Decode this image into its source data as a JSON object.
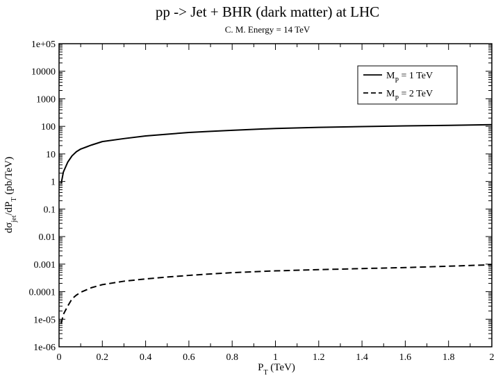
{
  "chart_data": {
    "type": "line",
    "title": "pp -> Jet + BHR (dark matter) at LHC",
    "subtitle": "C. M. Energy = 14 TeV",
    "xlabel": {
      "main": "P",
      "sub": "T",
      "rest": " (TeV)"
    },
    "ylabel": {
      "d": "d",
      "sigma": "σ",
      "jet": "jet",
      "mid": "/dP",
      "T": "T",
      "rest": " (pb/TeV)"
    },
    "xlim": [
      0,
      2
    ],
    "ylim": [
      1e-06,
      100000
    ],
    "yscale": "log",
    "x_ticks": [
      0,
      0.2,
      0.4,
      0.6,
      0.8,
      1,
      1.2,
      1.4,
      1.6,
      1.8,
      2
    ],
    "x_tick_labels": [
      "0",
      "0.2",
      "0.4",
      "0.6",
      "0.8",
      "1",
      "1.2",
      "1.4",
      "1.6",
      "1.8",
      "2"
    ],
    "y_ticks": [
      1e-06,
      1e-05,
      0.0001,
      0.001,
      0.01,
      0.1,
      1,
      10,
      100,
      1000,
      10000,
      100000
    ],
    "y_tick_labels": [
      "1e-06",
      "1e-05",
      "0.0001",
      "0.001",
      "0.01",
      "0.1",
      "1",
      "10",
      "100",
      "1000",
      "10000",
      "1e+05"
    ],
    "grid": false,
    "legend_position": "top-right",
    "series": [
      {
        "name": "M_P = 1 TeV",
        "label_main": "M",
        "label_sub": "P",
        "label_rest": " = 1 TeV",
        "style": "solid",
        "color": "#000000",
        "points": [
          [
            0.01,
            0.85
          ],
          [
            0.02,
            2.2
          ],
          [
            0.04,
            5
          ],
          [
            0.06,
            8.5
          ],
          [
            0.08,
            12
          ],
          [
            0.1,
            15
          ],
          [
            0.15,
            21
          ],
          [
            0.2,
            28
          ],
          [
            0.3,
            36
          ],
          [
            0.4,
            45
          ],
          [
            0.5,
            52
          ],
          [
            0.6,
            60
          ],
          [
            0.7,
            66
          ],
          [
            0.8,
            72
          ],
          [
            0.9,
            78
          ],
          [
            1.0,
            84
          ],
          [
            1.2,
            92
          ],
          [
            1.4,
            98
          ],
          [
            1.6,
            104
          ],
          [
            1.8,
            109
          ],
          [
            2.0,
            115
          ]
        ]
      },
      {
        "name": "M_P = 2 TeV",
        "label_main": "M",
        "label_sub": "P",
        "label_rest": " = 2 TeV",
        "style": "dashed",
        "color": "#000000",
        "points": [
          [
            0.01,
            7e-06
          ],
          [
            0.02,
            1.5e-05
          ],
          [
            0.04,
            3e-05
          ],
          [
            0.06,
            5.5e-05
          ],
          [
            0.08,
            7.5e-05
          ],
          [
            0.1,
            9.5e-05
          ],
          [
            0.15,
            0.00014
          ],
          [
            0.2,
            0.00018
          ],
          [
            0.3,
            0.00024
          ],
          [
            0.4,
            0.00029
          ],
          [
            0.5,
            0.00034
          ],
          [
            0.6,
            0.00039
          ],
          [
            0.7,
            0.00044
          ],
          [
            0.8,
            0.00049
          ],
          [
            0.9,
            0.00053
          ],
          [
            1.0,
            0.00057
          ],
          [
            1.2,
            0.00063
          ],
          [
            1.4,
            0.00069
          ],
          [
            1.6,
            0.00075
          ],
          [
            1.8,
            0.00084
          ],
          [
            2.0,
            0.00095
          ]
        ]
      }
    ]
  }
}
